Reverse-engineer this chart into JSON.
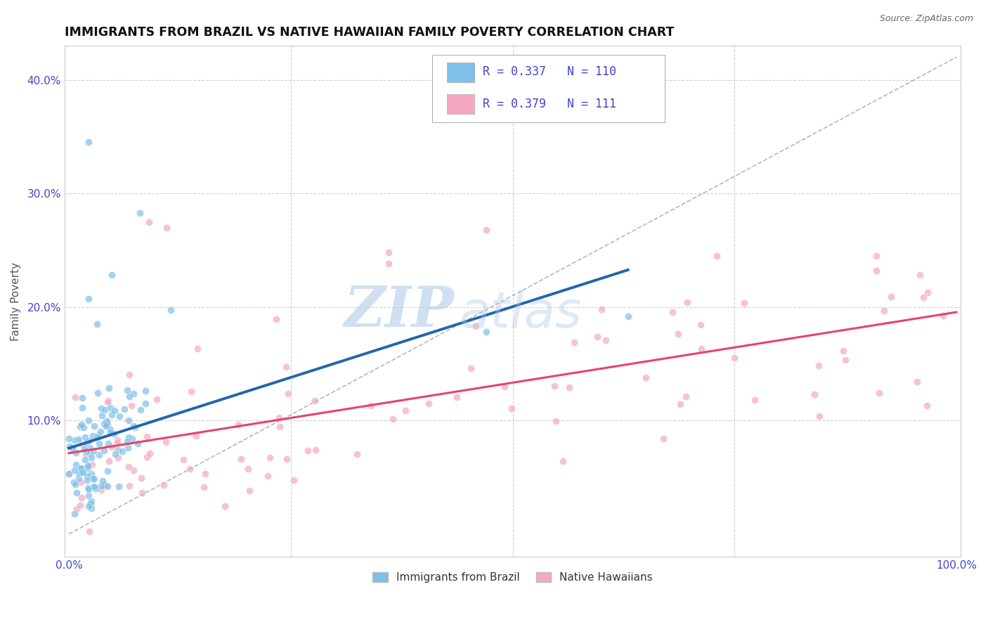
{
  "title": "IMMIGRANTS FROM BRAZIL VS NATIVE HAWAIIAN FAMILY POVERTY CORRELATION CHART",
  "source": "Source: ZipAtlas.com",
  "ylabel": "Family Poverty",
  "legend_label_1": "Immigrants from Brazil",
  "legend_label_2": "Native Hawaiians",
  "R1": 0.337,
  "N1": 110,
  "R2": 0.379,
  "N2": 111,
  "color1": "#7fbfe8",
  "color2": "#f5a8c0",
  "trendline1_color": "#2166ac",
  "trendline2_color": "#e8436a",
  "diagonal_color": "#aaaaaa",
  "xlim": [
    -0.005,
    1.005
  ],
  "ylim": [
    -0.02,
    0.43
  ],
  "x_ticks": [
    0,
    0.25,
    0.5,
    0.75,
    1.0
  ],
  "x_tick_labels": [
    "0.0%",
    "",
    "",
    "",
    "100.0%"
  ],
  "y_ticks": [
    0.0,
    0.1,
    0.2,
    0.3,
    0.4
  ],
  "y_tick_labels": [
    "",
    "10.0%",
    "20.0%",
    "30.0%",
    "40.0%"
  ],
  "watermark_zip": "ZIP",
  "watermark_atlas": "atlas",
  "grid_color": "#cccccc",
  "tick_color": "#4444cc",
  "scatter_alpha": 0.7,
  "scatter_size": 55,
  "scatter_lw": 0.5
}
